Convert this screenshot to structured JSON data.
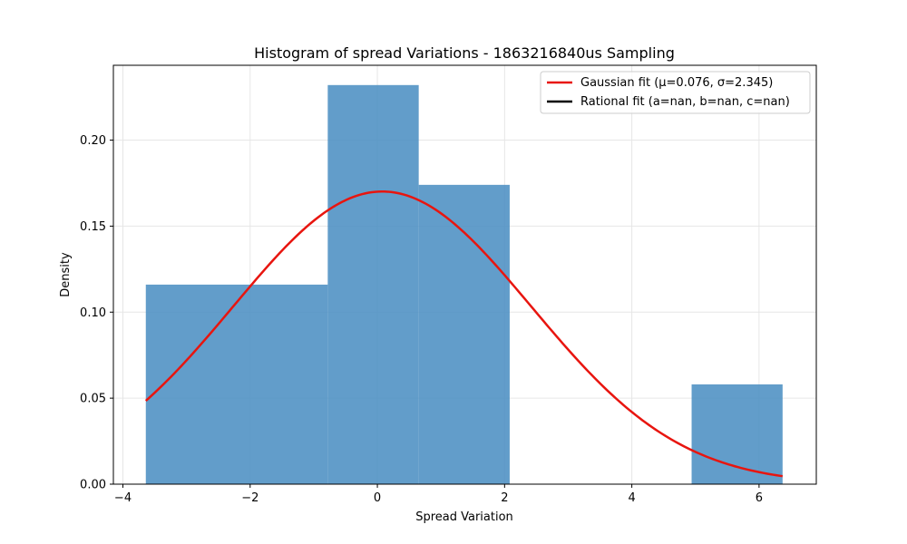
{
  "chart_data": {
    "type": "bar",
    "title": "Histogram of spread Variations - 1863216840us Sampling",
    "xlabel": "Spread Variation",
    "ylabel": "Density",
    "xlim": [
      -4.15,
      6.9
    ],
    "ylim": [
      0.0,
      0.2435
    ],
    "x_ticks": [
      -4,
      -2,
      0,
      2,
      4,
      6
    ],
    "x_tick_labels": [
      "−4",
      "−2",
      "0",
      "2",
      "4",
      "6"
    ],
    "y_ticks": [
      0.0,
      0.05,
      0.1,
      0.15,
      0.2
    ],
    "y_tick_labels": [
      "0.00",
      "0.05",
      "0.10",
      "0.15",
      "0.20"
    ],
    "grid": true,
    "legend_position": "top-right",
    "bins": [
      {
        "x0": -3.64,
        "x1": -0.78,
        "density": 0.116
      },
      {
        "x0": -0.78,
        "x1": 0.65,
        "density": 0.232
      },
      {
        "x0": 0.65,
        "x1": 2.08,
        "density": 0.174
      },
      {
        "x0": 4.94,
        "x1": 6.37,
        "density": 0.058
      }
    ],
    "bar_color": "#4c8fc3",
    "series": [
      {
        "name": "Gaussian fit (μ=0.076, σ=2.345)",
        "mu": 0.076,
        "sigma": 2.345,
        "x_range": [
          -3.64,
          6.37
        ],
        "color": "#e8150f"
      },
      {
        "name": "Rational fit (a=nan, b=nan, c=nan)",
        "color": "#000000"
      }
    ]
  }
}
